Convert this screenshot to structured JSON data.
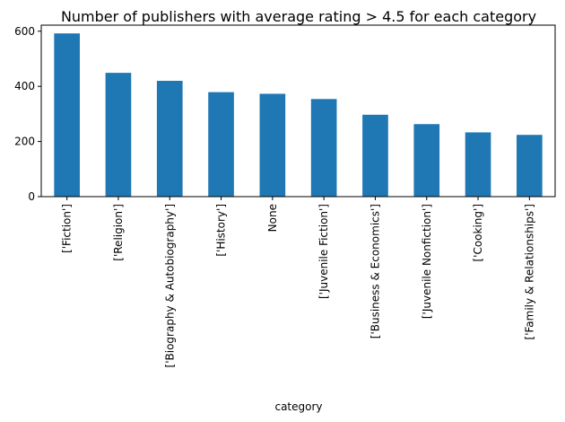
{
  "chart_data": {
    "type": "bar",
    "title": "Number of publishers with average rating > 4.5 for each category",
    "xlabel": "category",
    "ylabel": "",
    "categories": [
      "['Fiction']",
      "['Religion']",
      "['Biography & Autobiography']",
      "['History']",
      "None",
      "['Juvenile Fiction']",
      "['Business & Economics']",
      "['Juvenile Nonfiction']",
      "['Cooking']",
      "['Family & Relationships']"
    ],
    "values": [
      592,
      449,
      420,
      379,
      373,
      354,
      297,
      263,
      233,
      224
    ],
    "ylim": [
      0,
      622
    ],
    "yticks": [
      0,
      200,
      400,
      600
    ],
    "grid": false,
    "legend": "none",
    "bar_color": "#1f77b4"
  }
}
